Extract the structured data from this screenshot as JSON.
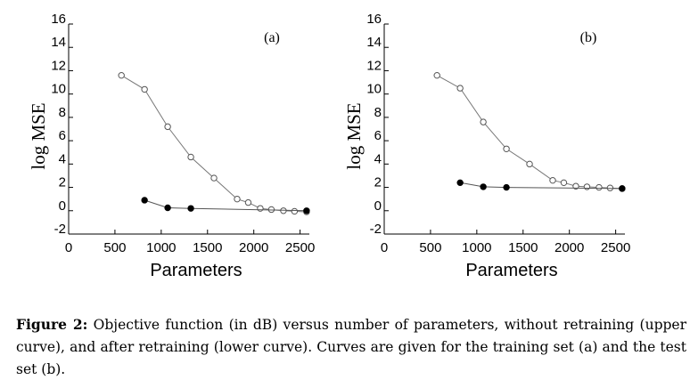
{
  "chart_data": [
    {
      "type": "line",
      "panel_label": "(a)",
      "xlabel": "Parameters",
      "ylabel": "log MSE",
      "xlim": [
        0,
        2600
      ],
      "ylim": [
        -2,
        16
      ],
      "xticks": [
        0,
        500,
        1000,
        1500,
        2000,
        2500
      ],
      "yticks": [
        -2,
        0,
        2,
        4,
        6,
        8,
        10,
        12,
        14,
        16
      ],
      "series": [
        {
          "name": "without retraining (upper curve)",
          "marker": "open-circle",
          "x": [
            570,
            820,
            1070,
            1320,
            1570,
            1820,
            1940,
            2070,
            2190,
            2320,
            2440,
            2570
          ],
          "y": [
            11.6,
            10.4,
            7.2,
            4.6,
            2.8,
            1.0,
            0.7,
            0.2,
            0.1,
            0.0,
            -0.05,
            -0.1
          ]
        },
        {
          "name": "after retraining (lower curve)",
          "marker": "filled-circle",
          "x": [
            820,
            1070,
            1320,
            2570
          ],
          "y": [
            0.9,
            0.25,
            0.2,
            0.0
          ]
        }
      ]
    },
    {
      "type": "line",
      "panel_label": "(b)",
      "xlabel": "Parameters",
      "ylabel": "log MSE",
      "xlim": [
        0,
        2600
      ],
      "ylim": [
        -2,
        16
      ],
      "xticks": [
        0,
        500,
        1000,
        1500,
        2000,
        2500
      ],
      "yticks": [
        -2,
        0,
        2,
        4,
        6,
        8,
        10,
        12,
        14,
        16
      ],
      "series": [
        {
          "name": "without retraining (upper curve)",
          "marker": "open-circle",
          "x": [
            570,
            820,
            1070,
            1320,
            1570,
            1820,
            1940,
            2070,
            2190,
            2320,
            2440,
            2570
          ],
          "y": [
            11.6,
            10.5,
            7.6,
            5.3,
            4.0,
            2.6,
            2.4,
            2.1,
            2.05,
            2.0,
            1.95,
            1.9
          ]
        },
        {
          "name": "after retraining (lower curve)",
          "marker": "filled-circle",
          "x": [
            820,
            1070,
            1320,
            2570
          ],
          "y": [
            2.4,
            2.05,
            2.0,
            1.9
          ]
        }
      ]
    }
  ],
  "caption": {
    "label": "Figure 2:",
    "text": "Objective function (in dB) versus number of parameters, without retraining (upper curve), and after retraining (lower curve). Curves are given for the training set (a) and the test set (b)."
  }
}
